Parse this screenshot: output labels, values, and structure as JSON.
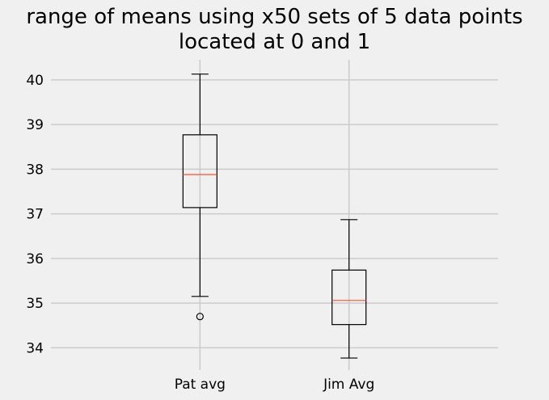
{
  "chart_data": {
    "type": "box",
    "title": [
      "range of means using x50 sets of 5 data points",
      "located at 0 and 1"
    ],
    "xlabel": "",
    "ylabel": "",
    "categories": [
      "Pat avg",
      "Jim Avg"
    ],
    "ylim": [
      33.5,
      40.45
    ],
    "yticks": [
      34,
      35,
      36,
      37,
      38,
      39,
      40
    ],
    "grid": true,
    "style": {
      "background": "#f0f0f0",
      "grid_color": "#cbcbcb",
      "box_color": "#000000",
      "median_color": "#fc4f30"
    },
    "boxes": [
      {
        "name": "Pat avg",
        "whisker_low": 35.15,
        "q1": 37.14,
        "median": 37.88,
        "q3": 38.77,
        "whisker_high": 40.13,
        "outliers": [
          34.7
        ]
      },
      {
        "name": "Jim Avg",
        "whisker_low": 33.77,
        "q1": 34.52,
        "median": 35.06,
        "q3": 35.74,
        "whisker_high": 36.87,
        "outliers": []
      }
    ]
  }
}
